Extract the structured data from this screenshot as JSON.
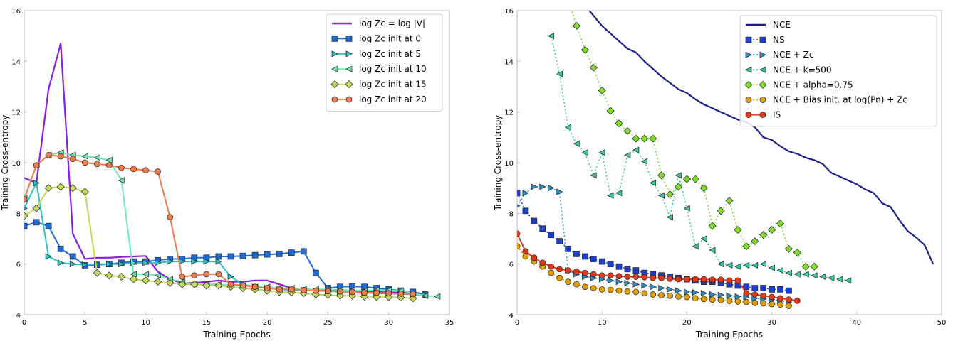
{
  "chart_data": [
    {
      "type": "line",
      "xlabel": "Training Epochs",
      "ylabel": "Training Cross-entropy",
      "xlim": [
        0,
        35
      ],
      "ylim": [
        4,
        16
      ],
      "xticks": [
        0,
        5,
        10,
        15,
        20,
        25,
        30,
        35
      ],
      "yticks": [
        4,
        6,
        8,
        10,
        12,
        14,
        16
      ],
      "grid": false,
      "legend_position": "top-right",
      "series": [
        {
          "name": "log Zc = log |V|",
          "color": "#8a1be2",
          "marker": "none",
          "x": [
            0,
            1,
            2,
            3,
            4,
            5,
            6,
            7,
            8,
            9,
            10,
            11,
            12,
            13,
            14,
            15,
            16,
            17,
            18,
            19,
            20,
            21,
            22,
            23,
            24,
            25,
            26,
            27,
            28,
            29,
            30,
            31,
            32,
            33
          ],
          "y": [
            9.4,
            9.2,
            12.9,
            14.7,
            7.2,
            6.2,
            6.25,
            6.25,
            6.28,
            6.3,
            6.32,
            5.7,
            5.4,
            5.25,
            5.25,
            5.3,
            5.35,
            5.3,
            5.3,
            5.35,
            5.35,
            5.2,
            5.05,
            5.0,
            4.98,
            4.97,
            4.95,
            4.95,
            4.92,
            4.9,
            4.88,
            4.88,
            4.85,
            4.8
          ]
        },
        {
          "name": "log Zc init at 0",
          "color": "#1f6bd6",
          "marker": "s",
          "x": [
            0,
            1,
            2,
            3,
            4,
            5,
            6,
            7,
            8,
            9,
            10,
            11,
            12,
            13,
            14,
            15,
            16,
            17,
            18,
            19,
            20,
            21,
            22,
            23,
            24,
            25,
            26,
            27,
            28,
            29,
            30,
            31,
            32,
            33
          ],
          "y": [
            7.5,
            7.65,
            7.5,
            6.6,
            6.3,
            5.95,
            5.97,
            6.0,
            6.05,
            6.1,
            6.1,
            6.15,
            6.2,
            6.2,
            6.25,
            6.25,
            6.3,
            6.3,
            6.32,
            6.35,
            6.38,
            6.4,
            6.45,
            6.5,
            5.65,
            5.05,
            5.1,
            5.12,
            5.1,
            5.05,
            5.0,
            4.95,
            4.9,
            4.8
          ]
        },
        {
          "name": "log Zc init at 5",
          "color": "#2ac3c3",
          "marker": ">",
          "x": [
            0,
            1,
            2,
            3,
            4,
            5,
            6,
            7,
            8,
            9,
            10,
            11,
            12,
            13,
            14,
            15,
            16,
            17,
            18,
            19,
            20,
            21,
            22,
            23,
            24,
            25,
            26,
            27,
            28,
            29,
            30,
            31,
            32,
            33
          ],
          "y": [
            8.2,
            9.2,
            6.3,
            6.05,
            6.0,
            5.97,
            6.0,
            6.0,
            6.0,
            6.05,
            6.05,
            6.05,
            6.1,
            6.1,
            6.1,
            6.1,
            6.1,
            5.5,
            5.2,
            5.1,
            5.05,
            5.0,
            4.97,
            4.97,
            4.95,
            4.93,
            4.9,
            4.88,
            4.87,
            4.85,
            4.83,
            4.82,
            4.8,
            4.78
          ]
        },
        {
          "name": "log Zc init at 10",
          "color": "#6fe8b4",
          "marker": "<",
          "x": [
            0,
            1,
            2,
            3,
            4,
            5,
            6,
            7,
            8,
            9,
            10,
            11,
            12,
            13,
            14,
            15,
            16,
            17,
            18,
            19,
            20,
            21,
            22,
            23,
            24,
            25,
            26,
            27,
            28,
            29,
            30,
            31,
            32,
            33,
            34
          ],
          "y": [
            8.6,
            9.9,
            10.3,
            10.4,
            10.3,
            10.25,
            10.2,
            10.1,
            9.3,
            5.6,
            5.6,
            5.55,
            5.4,
            5.3,
            5.2,
            5.2,
            5.2,
            5.15,
            5.15,
            5.1,
            5.1,
            5.05,
            5.05,
            5.0,
            5.0,
            5.0,
            4.98,
            4.97,
            4.95,
            4.97,
            4.97,
            4.95,
            4.85,
            4.75,
            4.72
          ]
        },
        {
          "name": "log Zc init at 15",
          "color": "#c8d65a",
          "marker": "D",
          "x": [
            0,
            1,
            2,
            3,
            4,
            5,
            6,
            7,
            8,
            9,
            10,
            11,
            12,
            13,
            14,
            15,
            16,
            17,
            18,
            19,
            20,
            21,
            22,
            23,
            24,
            25,
            26,
            27,
            28,
            29,
            30,
            31,
            32
          ],
          "y": [
            7.9,
            8.2,
            9.0,
            9.05,
            9.0,
            8.85,
            5.65,
            5.55,
            5.5,
            5.4,
            5.35,
            5.3,
            5.25,
            5.2,
            5.2,
            5.15,
            5.15,
            5.1,
            5.05,
            5.0,
            4.95,
            4.9,
            4.88,
            4.85,
            4.8,
            4.78,
            4.75,
            4.75,
            4.72,
            4.7,
            4.7,
            4.68,
            4.65
          ]
        },
        {
          "name": "log Zc init at 20",
          "color": "#f07c4a",
          "marker": "o",
          "x": [
            0,
            1,
            2,
            3,
            4,
            5,
            6,
            7,
            8,
            9,
            10,
            11,
            12,
            13,
            14,
            15,
            16,
            17,
            18,
            19,
            20,
            21,
            22,
            23,
            24,
            25,
            26,
            27,
            28,
            29,
            30,
            31,
            32
          ],
          "y": [
            8.55,
            9.9,
            10.3,
            10.25,
            10.15,
            10.0,
            9.95,
            9.9,
            9.8,
            9.75,
            9.7,
            9.65,
            7.85,
            5.5,
            5.55,
            5.6,
            5.6,
            5.2,
            5.15,
            5.1,
            5.05,
            5.0,
            5.0,
            4.97,
            4.95,
            4.93,
            4.92,
            4.9,
            4.88,
            4.87,
            4.85,
            4.83,
            4.82
          ]
        }
      ]
    },
    {
      "type": "line",
      "xlabel": "Training Epochs",
      "ylabel": "Training Cross-entropy",
      "xlim": [
        0,
        50
      ],
      "ylim": [
        4,
        16
      ],
      "xticks": [
        0,
        10,
        20,
        30,
        40,
        50
      ],
      "yticks": [
        4,
        6,
        8,
        10,
        12,
        14,
        16
      ],
      "grid": false,
      "legend_position": "top-right",
      "series": [
        {
          "name": "NCE",
          "color": "#1a1f8c",
          "marker": "none",
          "linestyle": "solid",
          "x": [
            8,
            9,
            10,
            11,
            12,
            13,
            14,
            15,
            16,
            17,
            18,
            19,
            20,
            21,
            22,
            23,
            24,
            25,
            26,
            27,
            28,
            29,
            30,
            31,
            32,
            33,
            34,
            35,
            36,
            37,
            38,
            39,
            40,
            41,
            42,
            43,
            44,
            45,
            46,
            47,
            48,
            49
          ],
          "y": [
            16.2,
            15.8,
            15.4,
            15.1,
            14.8,
            14.5,
            14.35,
            14.0,
            13.7,
            13.4,
            13.15,
            12.9,
            12.75,
            12.5,
            12.3,
            12.15,
            12.0,
            11.85,
            11.7,
            11.6,
            11.4,
            11.0,
            10.9,
            10.65,
            10.45,
            10.35,
            10.2,
            10.1,
            9.95,
            9.6,
            9.45,
            9.3,
            9.15,
            8.95,
            8.8,
            8.4,
            8.25,
            7.75,
            7.3,
            7.05,
            6.75,
            6.0
          ]
        },
        {
          "name": "NS",
          "color": "#1e3fc7",
          "marker": "s",
          "linestyle": "dotted",
          "x": [
            0,
            1,
            2,
            3,
            4,
            5,
            6,
            7,
            8,
            9,
            10,
            11,
            12,
            13,
            14,
            15,
            16,
            17,
            18,
            19,
            20,
            21,
            22,
            23,
            24,
            25,
            26,
            27,
            28,
            29,
            30,
            31,
            32
          ],
          "y": [
            8.8,
            8.1,
            7.7,
            7.4,
            7.15,
            6.9,
            6.6,
            6.4,
            6.3,
            6.2,
            6.1,
            6.0,
            5.9,
            5.8,
            5.75,
            5.65,
            5.6,
            5.55,
            5.5,
            5.45,
            5.4,
            5.35,
            5.3,
            5.3,
            5.25,
            5.2,
            5.15,
            5.1,
            5.05,
            5.05,
            5.0,
            5.0,
            4.95
          ]
        },
        {
          "name": "NCE + Zc",
          "color": "#2a8fc4",
          "marker": ">",
          "linestyle": "dotted",
          "x": [
            0,
            1,
            2,
            3,
            4,
            5,
            6,
            7,
            8,
            9,
            10,
            11,
            12,
            13,
            14,
            15,
            16,
            17,
            18,
            19,
            20,
            21,
            22,
            23,
            24,
            25,
            26,
            27,
            28,
            29,
            30,
            31,
            32
          ],
          "y": [
            8.3,
            8.8,
            9.05,
            9.05,
            9.0,
            8.85,
            5.75,
            5.6,
            5.5,
            5.45,
            5.4,
            5.35,
            5.3,
            5.25,
            5.2,
            5.15,
            5.1,
            5.05,
            5.0,
            4.95,
            4.9,
            4.88,
            4.85,
            4.8,
            4.78,
            4.75,
            4.72,
            4.7,
            4.65,
            4.62,
            4.6,
            4.55,
            4.5
          ]
        },
        {
          "name": "NCE + k=500",
          "color": "#3cc9a6",
          "marker": "<",
          "linestyle": "dotted",
          "x": [
            4,
            5,
            6,
            7,
            8,
            9,
            10,
            11,
            12,
            13,
            14,
            15,
            16,
            17,
            18,
            19,
            20,
            21,
            22,
            23,
            24,
            25,
            26,
            27,
            28,
            29,
            30,
            31,
            32,
            33,
            34,
            35,
            36,
            37,
            38,
            39
          ],
          "y": [
            15.0,
            13.5,
            11.4,
            10.75,
            10.4,
            9.5,
            10.4,
            8.7,
            8.8,
            10.3,
            10.5,
            10.05,
            9.2,
            8.7,
            7.85,
            9.5,
            8.2,
            6.7,
            7.0,
            6.55,
            6.0,
            5.95,
            5.9,
            5.95,
            5.95,
            6.0,
            5.85,
            5.75,
            5.65,
            5.6,
            5.6,
            5.55,
            5.5,
            5.45,
            5.4,
            5.35
          ]
        },
        {
          "name": "NCE + alpha=0.75",
          "color": "#7fdd2a",
          "marker": "D",
          "linestyle": "dotted",
          "x": [
            6,
            7,
            8,
            9,
            10,
            11,
            12,
            13,
            14,
            15,
            16,
            17,
            18,
            19,
            20,
            21,
            22,
            23,
            24,
            25,
            26,
            27,
            28,
            29,
            30,
            31,
            32,
            33,
            34,
            35
          ],
          "y": [
            16.5,
            15.4,
            14.45,
            13.75,
            12.85,
            12.05,
            11.55,
            11.25,
            10.95,
            10.95,
            10.95,
            9.5,
            8.75,
            9.05,
            9.35,
            9.35,
            9.0,
            7.5,
            8.1,
            8.5,
            7.35,
            6.7,
            6.9,
            7.15,
            7.35,
            7.6,
            6.6,
            6.45,
            5.9,
            5.9
          ]
        },
        {
          "name": "NCE + Bias init. at log(Pn) + Zc",
          "color": "#e0a000",
          "marker": "o",
          "linestyle": "dotted",
          "x": [
            0,
            1,
            2,
            3,
            4,
            5,
            6,
            7,
            8,
            9,
            10,
            11,
            12,
            13,
            14,
            15,
            16,
            17,
            18,
            19,
            20,
            21,
            22,
            23,
            24,
            25,
            26,
            27,
            28,
            29,
            30,
            31,
            32
          ],
          "y": [
            6.7,
            6.3,
            6.1,
            5.9,
            5.65,
            5.45,
            5.3,
            5.2,
            5.1,
            5.05,
            5.0,
            4.98,
            4.95,
            4.92,
            4.9,
            4.85,
            4.8,
            4.77,
            4.75,
            4.72,
            4.7,
            4.65,
            4.62,
            4.6,
            4.58,
            4.55,
            4.52,
            4.5,
            4.47,
            4.45,
            4.42,
            4.4,
            4.35
          ]
        },
        {
          "name": "IS",
          "color": "#e03a1a",
          "marker": "o",
          "linestyle": "solid",
          "x": [
            0,
            1,
            2,
            3,
            4,
            5,
            6,
            7,
            8,
            9,
            10,
            11,
            12,
            13,
            14,
            15,
            16,
            17,
            18,
            19,
            20,
            21,
            22,
            23,
            24,
            25,
            26,
            27,
            28,
            29,
            30,
            31,
            32,
            33
          ],
          "y": [
            7.2,
            6.5,
            6.25,
            6.05,
            5.9,
            5.8,
            5.75,
            5.7,
            5.65,
            5.6,
            5.55,
            5.55,
            5.52,
            5.5,
            5.5,
            5.48,
            5.45,
            5.45,
            5.42,
            5.4,
            5.4,
            5.4,
            5.4,
            5.38,
            5.38,
            5.35,
            5.35,
            4.85,
            4.8,
            4.75,
            4.7,
            4.65,
            4.6,
            4.55
          ]
        }
      ]
    }
  ]
}
